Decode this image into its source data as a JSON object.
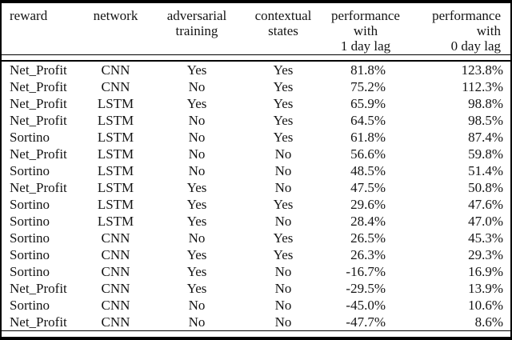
{
  "table": {
    "headers": {
      "reward": [
        "reward"
      ],
      "network": [
        "network"
      ],
      "adversarial_training": [
        "adversarial",
        "training"
      ],
      "contextual_states": [
        "contextual",
        "states"
      ],
      "performance_1day": [
        "performance",
        "with",
        "1 day lag"
      ],
      "performance_0day": [
        "performance",
        "with",
        "0 day lag"
      ]
    },
    "rows": [
      [
        "Net_Profit",
        "CNN",
        "Yes",
        "Yes",
        "81.8%",
        "123.8%"
      ],
      [
        "Net_Profit",
        "CNN",
        "No",
        "Yes",
        "75.2%",
        "112.3%"
      ],
      [
        "Net_Profit",
        "LSTM",
        "Yes",
        "Yes",
        "65.9%",
        "98.8%"
      ],
      [
        "Net_Profit",
        "LSTM",
        "No",
        "Yes",
        "64.5%",
        "98.5%"
      ],
      [
        "Sortino",
        "LSTM",
        "No",
        "Yes",
        "61.8%",
        "87.4%"
      ],
      [
        "Net_Profit",
        "LSTM",
        "No",
        "No",
        "56.6%",
        "59.8%"
      ],
      [
        "Sortino",
        "LSTM",
        "No",
        "No",
        "48.5%",
        "51.4%"
      ],
      [
        "Net_Profit",
        "LSTM",
        "Yes",
        "No",
        "47.5%",
        "50.8%"
      ],
      [
        "Sortino",
        "LSTM",
        "Yes",
        "Yes",
        "29.6%",
        "47.6%"
      ],
      [
        "Sortino",
        "LSTM",
        "Yes",
        "No",
        "28.4%",
        "47.0%"
      ],
      [
        "Sortino",
        "CNN",
        "No",
        "Yes",
        "26.5%",
        "45.3%"
      ],
      [
        "Sortino",
        "CNN",
        "Yes",
        "Yes",
        "26.3%",
        "29.3%"
      ],
      [
        "Sortino",
        "CNN",
        "Yes",
        "No",
        "-16.7%",
        "16.9%"
      ],
      [
        "Net_Profit",
        "CNN",
        "Yes",
        "No",
        "-29.5%",
        "13.9%"
      ],
      [
        "Sortino",
        "CNN",
        "No",
        "No",
        "-45.0%",
        "10.6%"
      ],
      [
        "Net_Profit",
        "CNN",
        "No",
        "No",
        "-47.7%",
        "8.6%"
      ]
    ],
    "colors": {
      "text": "#141414",
      "border": "#000000",
      "background": "#ffffff"
    }
  }
}
